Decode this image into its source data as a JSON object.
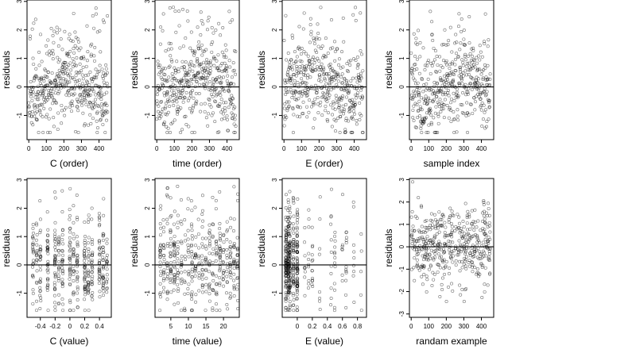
{
  "chart_data": [
    {
      "type": "scatter",
      "xlabel": "C (order)",
      "ylabel": "residuals",
      "xlim": [
        -10,
        470
      ],
      "ylim": [
        -1.85,
        3.05
      ],
      "x_ticks": [
        0,
        100,
        200,
        300,
        400
      ],
      "y_ticks": [
        -1,
        0,
        1,
        2,
        3
      ],
      "grid": false,
      "reference_line_y": 0,
      "pattern": "order",
      "seed": 11,
      "series": [
        {
          "n_points": 450,
          "x_range": [
            0,
            450
          ],
          "y_range": [
            -1.6,
            2.9
          ]
        }
      ]
    },
    {
      "type": "scatter",
      "xlabel": "time (order)",
      "ylabel": "residuals",
      "xlim": [
        -10,
        470
      ],
      "ylim": [
        -1.85,
        3.05
      ],
      "x_ticks": [
        0,
        100,
        200,
        300,
        400
      ],
      "y_ticks": [
        -1,
        0,
        1,
        2,
        3
      ],
      "grid": false,
      "reference_line_y": 0,
      "pattern": "order",
      "seed": 23,
      "series": [
        {
          "n_points": 450,
          "x_range": [
            0,
            450
          ],
          "y_range": [
            -1.6,
            2.9
          ]
        }
      ]
    },
    {
      "type": "scatter",
      "xlabel": "E (order)",
      "ylabel": "residuals",
      "xlim": [
        -10,
        470
      ],
      "ylim": [
        -1.85,
        3.05
      ],
      "x_ticks": [
        0,
        100,
        200,
        300,
        400
      ],
      "y_ticks": [
        -1,
        0,
        1,
        2,
        3
      ],
      "grid": false,
      "reference_line_y": 0,
      "pattern": "order",
      "seed": 37,
      "series": [
        {
          "n_points": 450,
          "x_range": [
            0,
            450
          ],
          "y_range": [
            -1.6,
            2.9
          ]
        }
      ]
    },
    {
      "type": "scatter",
      "xlabel": "sample index",
      "ylabel": "residuals",
      "xlim": [
        -10,
        470
      ],
      "ylim": [
        -1.85,
        3.05
      ],
      "x_ticks": [
        0,
        100,
        200,
        300,
        400
      ],
      "y_ticks": [
        -1,
        0,
        1,
        2,
        3
      ],
      "grid": false,
      "reference_line_y": 0,
      "pattern": "order",
      "seed": 41,
      "series": [
        {
          "n_points": 450,
          "x_range": [
            0,
            450
          ],
          "y_range": [
            -1.6,
            2.9
          ]
        }
      ]
    },
    {
      "type": "scatter",
      "xlabel": "C (value)",
      "ylabel": "residuals",
      "xlim": [
        -0.58,
        0.56
      ],
      "ylim": [
        -1.85,
        3.05
      ],
      "x_ticks": [
        -0.4,
        -0.2,
        0.0,
        0.2,
        0.4
      ],
      "y_ticks": [
        -1,
        0,
        1,
        2,
        3
      ],
      "grid": false,
      "reference_line_y": 0,
      "pattern": "discrete",
      "seed": 53,
      "discrete_x": [
        -0.5,
        -0.45,
        -0.4,
        -0.3,
        -0.2,
        -0.15,
        -0.1,
        0.0,
        0.05,
        0.1,
        0.2,
        0.25,
        0.3,
        0.4,
        0.45,
        0.5
      ],
      "series": [
        {
          "n_points": 450,
          "x_range": [
            -0.5,
            0.5
          ],
          "y_range": [
            -1.6,
            2.9
          ]
        }
      ]
    },
    {
      "type": "scatter",
      "xlabel": "time (value)",
      "ylabel": "residuals",
      "xlim": [
        0.5,
        24.5
      ],
      "ylim": [
        -1.85,
        3.05
      ],
      "x_ticks": [
        5,
        10,
        15,
        20
      ],
      "y_ticks": [
        -1,
        0,
        1,
        2,
        3
      ],
      "grid": false,
      "reference_line_y": 0,
      "pattern": "discrete",
      "seed": 67,
      "discrete_x": [
        2,
        3,
        4,
        5,
        6,
        7,
        8,
        9,
        10,
        11,
        12,
        13,
        14,
        15,
        16,
        17,
        18,
        19,
        20,
        21,
        22,
        23,
        24
      ],
      "series": [
        {
          "n_points": 450,
          "x_range": [
            2,
            24
          ],
          "y_range": [
            -1.6,
            2.9
          ]
        }
      ]
    },
    {
      "type": "scatter",
      "xlabel": "E (value)",
      "ylabel": "residuals",
      "xlim": [
        -0.2,
        0.92
      ],
      "ylim": [
        -1.85,
        3.05
      ],
      "x_ticks": [
        0.0,
        0.2,
        0.4,
        0.6,
        0.8
      ],
      "y_ticks": [
        -1,
        0,
        1,
        2,
        3
      ],
      "grid": false,
      "reference_line_y": 0,
      "pattern": "skewed",
      "seed": 79,
      "discrete_x": [
        -0.15,
        -0.12,
        -0.1,
        -0.05,
        0.0,
        0.1,
        0.15,
        0.2,
        0.3,
        0.45,
        0.5,
        0.6,
        0.65,
        0.75,
        0.85
      ],
      "series": [
        {
          "n_points": 450,
          "x_range": [
            -0.15,
            0.85
          ],
          "y_range": [
            -1.6,
            2.9
          ]
        }
      ]
    },
    {
      "type": "scatter",
      "xlabel": "randam example",
      "ylabel": "residuals",
      "xlim": [
        -10,
        470
      ],
      "ylim": [
        -3.15,
        3.05
      ],
      "x_ticks": [
        0,
        100,
        200,
        300,
        400
      ],
      "y_ticks": [
        -3,
        -2,
        -1,
        0,
        1,
        2,
        3
      ],
      "grid": false,
      "reference_line_y": 0,
      "pattern": "random",
      "seed": 97,
      "series": [
        {
          "n_points": 450,
          "x_range": [
            0,
            450
          ],
          "y_range": [
            -2.9,
            2.9
          ]
        }
      ]
    }
  ],
  "style": {
    "point_color": "#000000",
    "axis_color": "#000000",
    "background": "#ffffff"
  }
}
